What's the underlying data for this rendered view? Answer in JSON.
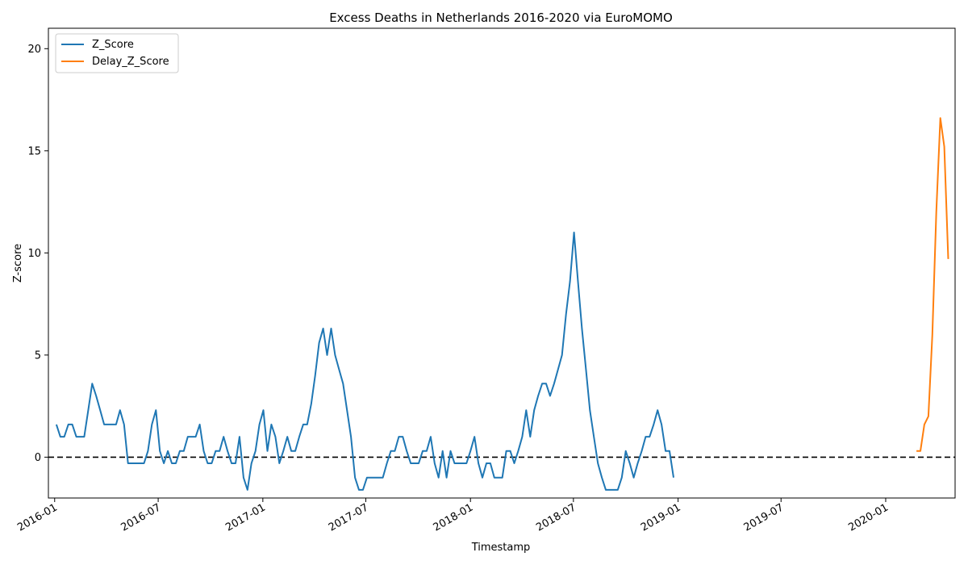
{
  "chart_data": {
    "type": "line",
    "title": "Excess Deaths in Netherlands 2016-2020 via EuroMOMO",
    "xlabel": "Timestamp",
    "ylabel": "Z-score",
    "xlim": [
      "2016-01",
      "2020-04"
    ],
    "ylim": [
      -2,
      21
    ],
    "x_ticks": [
      "2016-01",
      "2016-07",
      "2017-01",
      "2017-07",
      "2018-01",
      "2018-07",
      "2019-01",
      "2019-07",
      "2020-01"
    ],
    "y_ticks": [
      0,
      5,
      10,
      15,
      20
    ],
    "grid": false,
    "legend": "top-left",
    "reference_line": {
      "y": 0,
      "style": "dashed",
      "color": "#000000"
    },
    "series": [
      {
        "name": "Z_Score",
        "color": "#1f77b4",
        "points": [
          [
            "2016-01-04",
            1.6
          ],
          [
            "2016-01-11",
            1.0
          ],
          [
            "2016-01-18",
            1.0
          ],
          [
            "2016-01-25",
            1.6
          ],
          [
            "2016-02-01",
            1.6
          ],
          [
            "2016-02-08",
            1.0
          ],
          [
            "2016-02-15",
            1.0
          ],
          [
            "2016-02-22",
            1.0
          ],
          [
            "2016-02-29",
            2.3
          ],
          [
            "2016-03-07",
            3.6
          ],
          [
            "2016-03-14",
            3.0
          ],
          [
            "2016-03-21",
            2.3
          ],
          [
            "2016-03-28",
            1.6
          ],
          [
            "2016-04-04",
            1.6
          ],
          [
            "2016-04-11",
            1.6
          ],
          [
            "2016-04-18",
            1.6
          ],
          [
            "2016-04-25",
            2.3
          ],
          [
            "2016-05-02",
            1.6
          ],
          [
            "2016-05-09",
            -0.3
          ],
          [
            "2016-05-16",
            -0.3
          ],
          [
            "2016-05-23",
            -0.3
          ],
          [
            "2016-05-30",
            -0.3
          ],
          [
            "2016-06-06",
            -0.3
          ],
          [
            "2016-06-13",
            0.3
          ],
          [
            "2016-06-20",
            1.6
          ],
          [
            "2016-06-27",
            2.3
          ],
          [
            "2016-07-04",
            0.3
          ],
          [
            "2016-07-11",
            -0.3
          ],
          [
            "2016-07-18",
            0.3
          ],
          [
            "2016-07-25",
            -0.3
          ],
          [
            "2016-08-01",
            -0.3
          ],
          [
            "2016-08-08",
            0.3
          ],
          [
            "2016-08-15",
            0.3
          ],
          [
            "2016-08-22",
            1.0
          ],
          [
            "2016-08-29",
            1.0
          ],
          [
            "2016-09-05",
            1.0
          ],
          [
            "2016-09-12",
            1.6
          ],
          [
            "2016-09-19",
            0.3
          ],
          [
            "2016-09-26",
            -0.3
          ],
          [
            "2016-10-03",
            -0.3
          ],
          [
            "2016-10-10",
            0.3
          ],
          [
            "2016-10-17",
            0.3
          ],
          [
            "2016-10-24",
            1.0
          ],
          [
            "2016-10-31",
            0.3
          ],
          [
            "2016-11-07",
            -0.3
          ],
          [
            "2016-11-14",
            -0.3
          ],
          [
            "2016-11-21",
            1.0
          ],
          [
            "2016-11-28",
            -1.0
          ],
          [
            "2016-12-05",
            -1.6
          ],
          [
            "2016-12-12",
            -0.3
          ],
          [
            "2016-12-19",
            0.3
          ],
          [
            "2016-12-26",
            1.6
          ],
          [
            "2017-01-02",
            2.3
          ],
          [
            "2017-01-09",
            0.3
          ],
          [
            "2017-01-16",
            1.6
          ],
          [
            "2017-01-23",
            1.0
          ],
          [
            "2017-01-30",
            -0.3
          ],
          [
            "2017-02-06",
            0.3
          ],
          [
            "2017-02-13",
            1.0
          ],
          [
            "2017-02-20",
            0.3
          ],
          [
            "2017-02-27",
            0.3
          ],
          [
            "2017-03-06",
            1.0
          ],
          [
            "2017-03-13",
            1.6
          ],
          [
            "2017-03-20",
            1.6
          ],
          [
            "2017-03-27",
            2.6
          ],
          [
            "2017-04-03",
            4.0
          ],
          [
            "2017-04-10",
            5.6
          ],
          [
            "2017-04-17",
            6.3
          ],
          [
            "2017-04-24",
            5.0
          ],
          [
            "2017-05-01",
            6.3
          ],
          [
            "2017-05-08",
            5.0
          ],
          [
            "2017-05-15",
            4.3
          ],
          [
            "2017-05-22",
            3.6
          ],
          [
            "2017-05-29",
            2.3
          ],
          [
            "2017-06-05",
            1.0
          ],
          [
            "2017-06-12",
            -1.0
          ],
          [
            "2017-06-19",
            -1.6
          ],
          [
            "2017-06-26",
            -1.6
          ],
          [
            "2017-07-03",
            -1.0
          ],
          [
            "2017-07-10",
            -1.0
          ],
          [
            "2017-07-17",
            -1.0
          ],
          [
            "2017-07-24",
            -1.0
          ],
          [
            "2017-07-31",
            -1.0
          ],
          [
            "2017-08-07",
            -0.3
          ],
          [
            "2017-08-14",
            0.3
          ],
          [
            "2017-08-21",
            0.3
          ],
          [
            "2017-08-28",
            1.0
          ],
          [
            "2017-09-04",
            1.0
          ],
          [
            "2017-09-11",
            0.3
          ],
          [
            "2017-09-18",
            -0.3
          ],
          [
            "2017-09-25",
            -0.3
          ],
          [
            "2017-10-02",
            -0.3
          ],
          [
            "2017-10-09",
            0.3
          ],
          [
            "2017-10-16",
            0.3
          ],
          [
            "2017-10-23",
            1.0
          ],
          [
            "2017-10-30",
            -0.3
          ],
          [
            "2017-11-06",
            -1.0
          ],
          [
            "2017-11-13",
            0.3
          ],
          [
            "2017-11-20",
            -1.0
          ],
          [
            "2017-11-27",
            0.3
          ],
          [
            "2017-12-04",
            -0.3
          ],
          [
            "2017-12-11",
            -0.3
          ],
          [
            "2017-12-18",
            -0.3
          ],
          [
            "2017-12-25",
            -0.3
          ],
          [
            "2018-01-01",
            0.3
          ],
          [
            "2018-01-08",
            1.0
          ],
          [
            "2018-01-15",
            -0.3
          ],
          [
            "2018-01-22",
            -1.0
          ],
          [
            "2018-01-29",
            -0.3
          ],
          [
            "2018-02-05",
            -0.3
          ],
          [
            "2018-02-12",
            -1.0
          ],
          [
            "2018-02-19",
            -1.0
          ],
          [
            "2018-02-26",
            -1.0
          ],
          [
            "2018-03-05",
            0.3
          ],
          [
            "2018-03-12",
            0.3
          ],
          [
            "2018-03-19",
            -0.3
          ],
          [
            "2018-03-26",
            0.3
          ],
          [
            "2018-04-02",
            1.0
          ],
          [
            "2018-04-09",
            2.3
          ],
          [
            "2018-04-16",
            1.0
          ],
          [
            "2018-04-23",
            2.3
          ],
          [
            "2018-04-30",
            3.0
          ],
          [
            "2018-05-07",
            3.6
          ],
          [
            "2018-05-14",
            3.6
          ],
          [
            "2018-05-21",
            3.0
          ],
          [
            "2018-05-28",
            3.6
          ],
          [
            "2018-06-04",
            4.3
          ],
          [
            "2018-06-11",
            5.0
          ],
          [
            "2018-06-18",
            7.0
          ],
          [
            "2018-06-25",
            8.6
          ],
          [
            "2018-07-02",
            11.0
          ],
          [
            "2018-07-09",
            8.6
          ],
          [
            "2018-07-16",
            6.3
          ],
          [
            "2018-07-23",
            4.3
          ],
          [
            "2018-07-30",
            2.3
          ],
          [
            "2018-08-06",
            1.0
          ],
          [
            "2018-08-13",
            -0.3
          ],
          [
            "2018-08-20",
            -1.0
          ],
          [
            "2018-08-27",
            -1.6
          ],
          [
            "2018-09-03",
            -1.6
          ],
          [
            "2018-09-10",
            -1.6
          ],
          [
            "2018-09-17",
            -1.6
          ],
          [
            "2018-09-24",
            -1.0
          ],
          [
            "2018-10-01",
            0.3
          ],
          [
            "2018-10-08",
            -0.3
          ],
          [
            "2018-10-15",
            -1.0
          ],
          [
            "2018-10-22",
            -0.3
          ],
          [
            "2018-10-29",
            0.3
          ],
          [
            "2018-11-05",
            1.0
          ],
          [
            "2018-11-12",
            1.0
          ],
          [
            "2018-11-19",
            1.6
          ],
          [
            "2018-11-26",
            2.3
          ],
          [
            "2018-12-03",
            1.6
          ],
          [
            "2018-12-10",
            0.3
          ],
          [
            "2018-12-17",
            0.3
          ],
          [
            "2018-12-24",
            -1.0
          ]
        ]
      },
      {
        "name": "Delay_Z_Score",
        "color": "#ff7f0e",
        "points": [
          [
            "2020-02-24",
            0.3
          ],
          [
            "2020-03-02",
            0.3
          ],
          [
            "2020-03-09",
            1.6
          ],
          [
            "2020-03-16",
            2.0
          ],
          [
            "2020-03-23",
            6.0
          ],
          [
            "2020-03-30",
            12.0
          ],
          [
            "2020-04-06",
            16.6
          ],
          [
            "2020-04-13",
            15.2
          ],
          [
            "2020-04-20",
            9.7
          ]
        ]
      }
    ]
  }
}
